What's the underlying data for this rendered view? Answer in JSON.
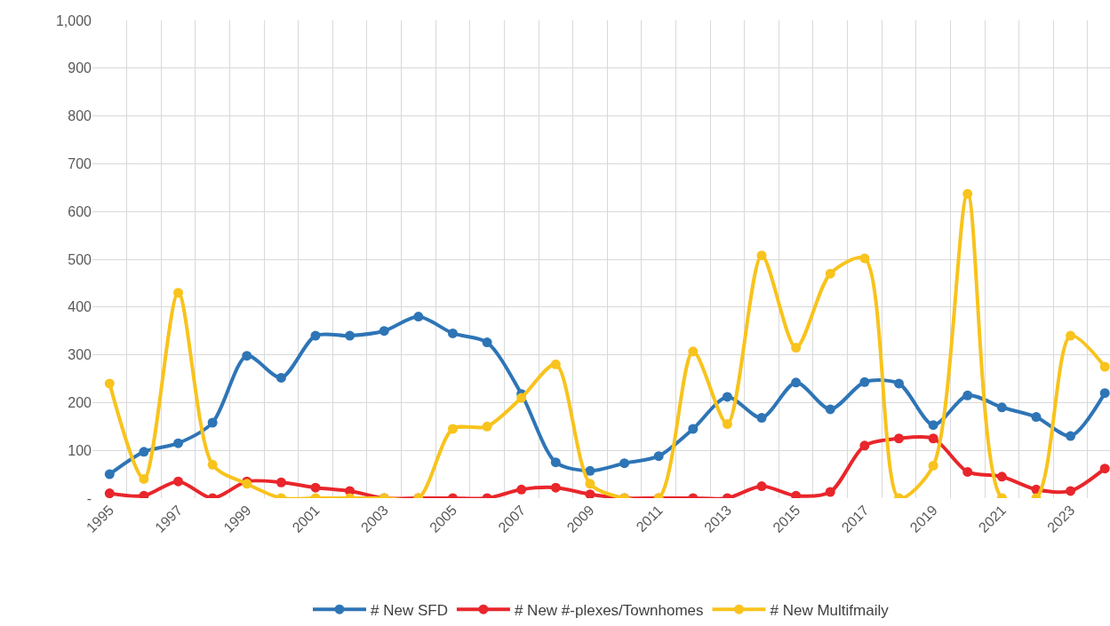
{
  "chart_data": {
    "type": "line",
    "categories": [
      "1995",
      null,
      "1997",
      null,
      "1999",
      null,
      "2001",
      null,
      "2003",
      null,
      "2005",
      null,
      "2007",
      null,
      "2009",
      null,
      "2011",
      null,
      "2013",
      null,
      "2015",
      null,
      "2017",
      null,
      "2019",
      null,
      "2021",
      null,
      "2023",
      null
    ],
    "series": [
      {
        "name": "# New SFD",
        "color": "#2e75b6",
        "values": [
          50,
          97,
          115,
          158,
          298,
          252,
          340,
          340,
          350,
          380,
          345,
          326,
          218,
          75,
          57,
          73,
          88,
          145,
          212,
          168,
          242,
          186,
          243,
          240,
          153,
          215,
          190,
          170,
          130,
          220
        ]
      },
      {
        "name": "# New #-plexes/Townhomes",
        "color": "#e8262b",
        "values": [
          10,
          5,
          35,
          0,
          35,
          33,
          22,
          15,
          0,
          0,
          0,
          0,
          18,
          22,
          8,
          0,
          0,
          0,
          0,
          25,
          5,
          13,
          110,
          125,
          125,
          55,
          45,
          18,
          15,
          62
        ]
      },
      {
        "name": "# New Multifmaily",
        "color": "#f8c31c",
        "values": [
          240,
          40,
          430,
          70,
          30,
          0,
          0,
          0,
          0,
          0,
          145,
          150,
          210,
          280,
          30,
          0,
          0,
          307,
          155,
          508,
          315,
          470,
          502,
          0,
          68,
          637,
          0,
          0,
          340,
          275
        ]
      }
    ],
    "ylim": [
      0,
      1000
    ],
    "yticks": [
      {
        "value": 0,
        "label": "-"
      },
      100,
      200,
      300,
      400,
      500,
      600,
      700,
      800,
      900,
      {
        "value": 1000,
        "label": "1,000"
      }
    ],
    "grid": true,
    "legend": "bottom",
    "marker": "circle",
    "line_style": "solid"
  }
}
